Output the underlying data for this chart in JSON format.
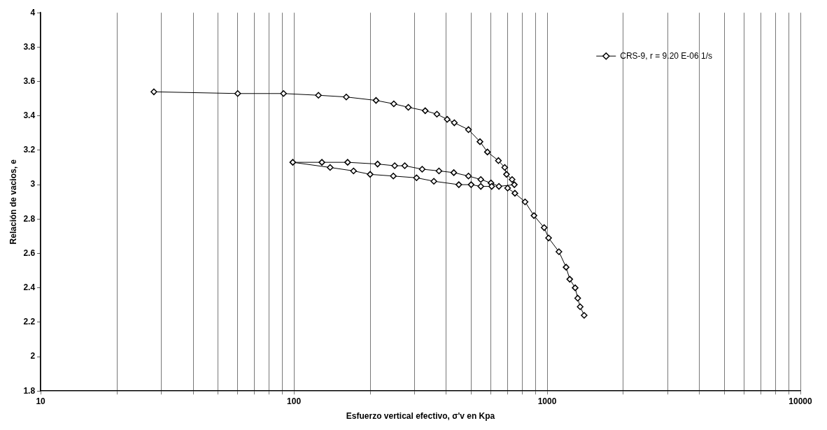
{
  "chart_data": {
    "type": "line",
    "xlabel": "Esfuerzo vertical efectivo, σ'v en Kpa",
    "ylabel": "Relación de vacios, e",
    "log": "x",
    "grid": "x",
    "legend": "top right",
    "marker": "diamond",
    "line_style": "solid",
    "xlim": [
      10,
      10000
    ],
    "ylim": [
      1.8,
      4
    ],
    "xticks": [
      10,
      {
        "value": 20,
        "label": null
      },
      {
        "value": 30,
        "label": null
      },
      {
        "value": 40,
        "label": null
      },
      {
        "value": 50,
        "label": null
      },
      {
        "value": 60,
        "label": null
      },
      {
        "value": 70,
        "label": null
      },
      {
        "value": 80,
        "label": null
      },
      {
        "value": 90,
        "label": null
      },
      100,
      {
        "value": 200,
        "label": null
      },
      {
        "value": 300,
        "label": null
      },
      {
        "value": 400,
        "label": null
      },
      {
        "value": 500,
        "label": null
      },
      {
        "value": 600,
        "label": null
      },
      {
        "value": 700,
        "label": null
      },
      {
        "value": 800,
        "label": null
      },
      {
        "value": 900,
        "label": null
      },
      1000,
      {
        "value": 2000,
        "label": null
      },
      {
        "value": 3000,
        "label": null
      },
      {
        "value": 4000,
        "label": null
      },
      {
        "value": 5000,
        "label": null
      },
      {
        "value": 6000,
        "label": null
      },
      {
        "value": 7000,
        "label": null
      },
      {
        "value": 8000,
        "label": null
      },
      {
        "value": 9000,
        "label": null
      },
      10000
    ],
    "yticks": [
      1.8,
      2,
      2.2,
      2.4,
      2.6,
      2.8,
      3,
      3.2,
      3.4,
      3.6,
      3.8,
      4
    ],
    "series": [
      {
        "name": "CRS-9, r = 9.20 E-06 1/s",
        "color": "#000000",
        "x": [
          28,
          60,
          91,
          125,
          161,
          211,
          248,
          283,
          330,
          367,
          403,
          430,
          489,
          543,
          581,
          642,
          680,
          691,
          727,
          742,
          645,
          600,
          547,
          489,
          428,
          374,
          321,
          274,
          250,
          214,
          163,
          129,
          99,
          139,
          172,
          200,
          247,
          305,
          357,
          448,
          501,
          547,
          604,
          645,
          698,
          746,
          818,
          887,
          973,
          1013,
          1113,
          1188,
          1228,
          1290,
          1320,
          1350,
          1400
        ],
        "values": [
          3.54,
          3.53,
          3.53,
          3.52,
          3.51,
          3.49,
          3.47,
          3.45,
          3.43,
          3.41,
          3.38,
          3.36,
          3.32,
          3.25,
          3.19,
          3.14,
          3.1,
          3.06,
          3.03,
          3,
          2.99,
          3.01,
          3.03,
          3.05,
          3.07,
          3.08,
          3.09,
          3.11,
          3.11,
          3.12,
          3.13,
          3.13,
          3.13,
          3.1,
          3.08,
          3.06,
          3.05,
          3.04,
          3.02,
          3,
          3,
          2.99,
          2.99,
          null,
          2.98,
          2.95,
          2.9,
          2.82,
          2.75,
          2.69,
          2.61,
          2.52,
          2.45,
          2.4,
          2.34,
          2.29,
          2.24
        ]
      }
    ]
  }
}
